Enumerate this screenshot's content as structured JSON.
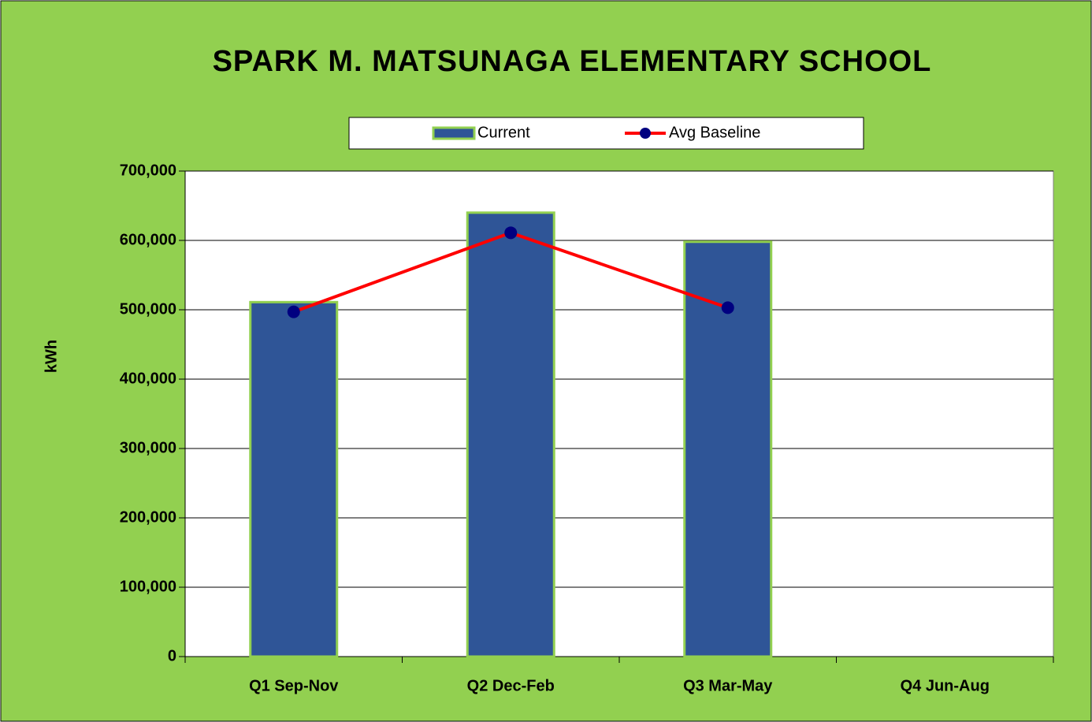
{
  "chart_data": {
    "type": "bar",
    "title": "SPARK M. MATSUNAGA ELEMENTARY SCHOOL",
    "y_label": "kWh",
    "categories": [
      "Q1 Sep-Nov",
      "Q2 Dec-Feb",
      "Q3 Mar-May",
      "Q4 Jun-Aug"
    ],
    "series": [
      {
        "name": "Current",
        "type": "bar",
        "color": "#2f5597",
        "values": [
          511000,
          640000,
          598000,
          null
        ]
      },
      {
        "name": "Avg Baseline",
        "type": "line",
        "color": "#ff0000",
        "marker_color": "#000080",
        "values": [
          497000,
          611000,
          503000,
          null
        ]
      }
    ],
    "ylim": [
      0,
      700000
    ],
    "yticks": [
      {
        "value": 0,
        "label": "0"
      },
      {
        "value": 100000,
        "label": "100,000"
      },
      {
        "value": 200000,
        "label": "200,000"
      },
      {
        "value": 300000,
        "label": "300,000"
      },
      {
        "value": 400000,
        "label": "400,000"
      },
      {
        "value": 500000,
        "label": "500,000"
      },
      {
        "value": 600000,
        "label": "600,000"
      },
      {
        "value": 700000,
        "label": "700,000"
      }
    ],
    "grid": true,
    "legend": "top"
  }
}
